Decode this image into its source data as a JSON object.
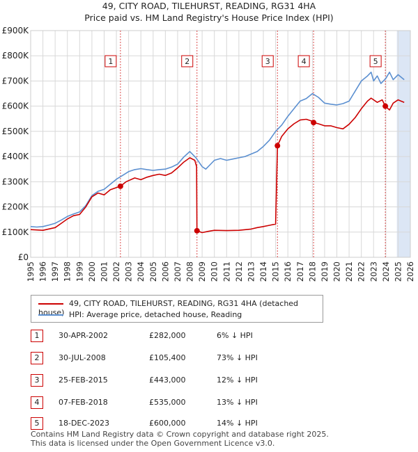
{
  "title": {
    "line1": "49, CITY ROAD, TILEHURST, READING, RG31 4HA",
    "line2": "Price paid vs. HM Land Registry's House Price Index (HPI)"
  },
  "colors": {
    "property": "#cc0000",
    "hpi": "#5b8fd0",
    "shade": "#dce6f5",
    "marker_line": "#cc0000",
    "grid": "#d8d8d8"
  },
  "chart_data": {
    "type": "line",
    "title": "49, CITY ROAD, TILEHURST, READING, RG31 4HA — Price paid vs. HM Land Registry's House Price Index (HPI)",
    "xlabel": "",
    "ylabel": "",
    "xlim": [
      1995,
      2026
    ],
    "ylim": [
      0,
      900000
    ],
    "grid": true,
    "y_ticks": [
      0,
      100000,
      200000,
      300000,
      400000,
      500000,
      600000,
      700000,
      800000,
      900000
    ],
    "y_tick_labels": [
      "£0",
      "£100K",
      "£200K",
      "£300K",
      "£400K",
      "£500K",
      "£600K",
      "£700K",
      "£800K",
      "£900K"
    ],
    "x_ticks": [
      1995,
      1996,
      1997,
      1998,
      1999,
      2000,
      2001,
      2002,
      2003,
      2004,
      2005,
      2006,
      2007,
      2008,
      2009,
      2010,
      2011,
      2012,
      2013,
      2014,
      2015,
      2016,
      2017,
      2018,
      2019,
      2020,
      2021,
      2022,
      2023,
      2024,
      2025,
      2026
    ],
    "x_tick_labels": [
      "1995",
      "1996",
      "1997",
      "1998",
      "1999",
      "2000",
      "2001",
      "2002",
      "2003",
      "2004",
      "2005",
      "2006",
      "2007",
      "2008",
      "2009",
      "2010",
      "2011",
      "2012",
      "2013",
      "2014",
      "2015",
      "2016",
      "2017",
      "2018",
      "2019",
      "2020",
      "2021",
      "2022",
      "2023",
      "2024",
      "2025",
      "2026"
    ],
    "shaded_ranges": [
      [
        2024.9,
        2026
      ]
    ],
    "series": [
      {
        "name": "49, CITY ROAD, TILEHURST, READING, RG31 4HA (detached house)",
        "color": "#cc0000",
        "x": [
          1995.0,
          1996.0,
          1997.0,
          1997.5,
          1998.0,
          1998.5,
          1999.0,
          1999.5,
          2000.0,
          2000.5,
          2001.0,
          2001.5,
          2002.0,
          2002.33,
          2002.8,
          2003.5,
          2004.0,
          2004.5,
          2005.0,
          2005.5,
          2006.0,
          2006.5,
          2007.0,
          2007.5,
          2008.0,
          2008.4,
          2008.55,
          2008.58,
          2009.0,
          2009.5,
          2010.0,
          2011.0,
          2012.0,
          2013.0,
          2013.5,
          2014.0,
          2014.5,
          2015.0,
          2015.15,
          2015.5,
          2016.0,
          2016.5,
          2017.0,
          2017.5,
          2018.0,
          2018.1,
          2018.5,
          2019.0,
          2019.5,
          2020.0,
          2020.5,
          2021.0,
          2021.5,
          2022.0,
          2022.5,
          2022.8,
          2023.3,
          2023.7,
          2023.96,
          2024.3,
          2024.6,
          2025.0,
          2025.5
        ],
        "values": [
          110000,
          107000,
          118000,
          135000,
          152000,
          165000,
          170000,
          200000,
          240000,
          255000,
          248000,
          268000,
          277000,
          282000,
          300000,
          315000,
          308000,
          318000,
          325000,
          330000,
          325000,
          335000,
          355000,
          378000,
          395000,
          385000,
          360000,
          105400,
          98000,
          103000,
          107000,
          106000,
          107000,
          112000,
          118000,
          122000,
          127000,
          132000,
          443000,
          480000,
          510000,
          530000,
          545000,
          548000,
          540000,
          535000,
          530000,
          522000,
          522000,
          515000,
          510000,
          528000,
          555000,
          590000,
          620000,
          632000,
          615000,
          625000,
          600000,
          585000,
          612000,
          625000,
          615000
        ]
      },
      {
        "name": "HPI: Average price, detached house, Reading",
        "color": "#5b8fd0",
        "x": [
          1995.0,
          1995.5,
          1996.0,
          1996.5,
          1997.0,
          1997.5,
          1998.0,
          1998.5,
          1999.0,
          1999.5,
          2000.0,
          2000.5,
          2001.0,
          2001.5,
          2002.0,
          2002.5,
          2003.0,
          2003.5,
          2004.0,
          2004.5,
          2005.0,
          2005.5,
          2006.0,
          2006.5,
          2007.0,
          2007.5,
          2008.0,
          2008.5,
          2009.0,
          2009.3,
          2009.7,
          2010.0,
          2010.5,
          2011.0,
          2011.5,
          2012.0,
          2012.5,
          2013.0,
          2013.5,
          2014.0,
          2014.5,
          2015.0,
          2015.5,
          2016.0,
          2016.5,
          2017.0,
          2017.5,
          2018.0,
          2018.5,
          2019.0,
          2019.5,
          2020.0,
          2020.5,
          2021.0,
          2021.5,
          2022.0,
          2022.5,
          2022.8,
          2023.0,
          2023.3,
          2023.6,
          2024.0,
          2024.3,
          2024.6,
          2025.0,
          2025.5
        ],
        "values": [
          122000,
          120000,
          122000,
          128000,
          135000,
          148000,
          162000,
          172000,
          180000,
          205000,
          245000,
          262000,
          270000,
          290000,
          310000,
          325000,
          340000,
          348000,
          352000,
          348000,
          345000,
          348000,
          350000,
          358000,
          370000,
          398000,
          420000,
          395000,
          360000,
          350000,
          370000,
          385000,
          392000,
          385000,
          390000,
          395000,
          400000,
          410000,
          420000,
          440000,
          465000,
          500000,
          525000,
          560000,
          590000,
          620000,
          630000,
          650000,
          635000,
          612000,
          608000,
          605000,
          610000,
          620000,
          660000,
          700000,
          720000,
          735000,
          700000,
          720000,
          690000,
          710000,
          735000,
          705000,
          725000,
          705000
        ]
      }
    ],
    "markers": [
      {
        "label": "1",
        "x": 2002.33,
        "value": 282000
      },
      {
        "label": "2",
        "x": 2008.58,
        "value": 105400
      },
      {
        "label": "3",
        "x": 2015.15,
        "value": 443000
      },
      {
        "label": "4",
        "x": 2018.1,
        "value": 535000
      },
      {
        "label": "5",
        "x": 2023.96,
        "value": 600000
      }
    ]
  },
  "legend": {
    "property_label": "49, CITY ROAD, TILEHURST, READING, RG31 4HA (detached house)",
    "hpi_label": "HPI: Average price, detached house, Reading"
  },
  "table": {
    "rows": [
      {
        "num": "1",
        "date": "30-APR-2002",
        "price": "£282,000",
        "hpi": "6% ↓ HPI"
      },
      {
        "num": "2",
        "date": "30-JUL-2008",
        "price": "£105,400",
        "hpi": "73% ↓ HPI"
      },
      {
        "num": "3",
        "date": "25-FEB-2015",
        "price": "£443,000",
        "hpi": "12% ↓ HPI"
      },
      {
        "num": "4",
        "date": "07-FEB-2018",
        "price": "£535,000",
        "hpi": "13% ↓ HPI"
      },
      {
        "num": "5",
        "date": "18-DEC-2023",
        "price": "£600,000",
        "hpi": "14% ↓ HPI"
      }
    ]
  },
  "footer": {
    "line1": "Contains HM Land Registry data © Crown copyright and database right 2025.",
    "line2": "This data is licensed under the Open Government Licence v3.0."
  }
}
